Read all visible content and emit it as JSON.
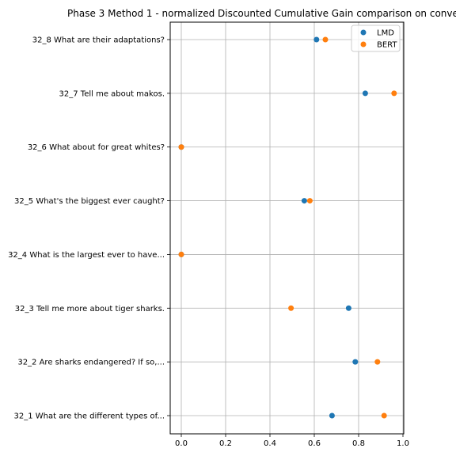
{
  "chart_data": {
    "type": "scatter",
    "title": "Phase 3 Method 1 - normalized Discounted Cumulative Gain comparison on conve",
    "xlabel": "",
    "ylabel": "",
    "xlim": [
      -0.05,
      1.0
    ],
    "xticks": [
      "0.0",
      "0.2",
      "0.4",
      "0.6",
      "0.8",
      "1.0"
    ],
    "grid": true,
    "legend_position": "top-right",
    "categories": [
      "32_1 What are the different types of...",
      "32_2 Are sharks endangered? If so,...",
      "32_3 Tell me more about tiger sharks.",
      "32_4 What is the largest ever to have...",
      "32_5 What's the biggest ever caught?",
      "32_6 What about for great whites?",
      "32_7 Tell me about makos.",
      "32_8 What are their adaptations?"
    ],
    "series": [
      {
        "name": "LMD",
        "color": "#1f77b4",
        "values": [
          0.68,
          0.785,
          0.755,
          0.0,
          0.555,
          0.0,
          0.83,
          0.61
        ]
      },
      {
        "name": "BERT",
        "color": "#ff7f0e",
        "values": [
          0.915,
          0.885,
          0.495,
          0.0,
          0.58,
          0.0,
          0.96,
          0.65
        ]
      }
    ]
  }
}
